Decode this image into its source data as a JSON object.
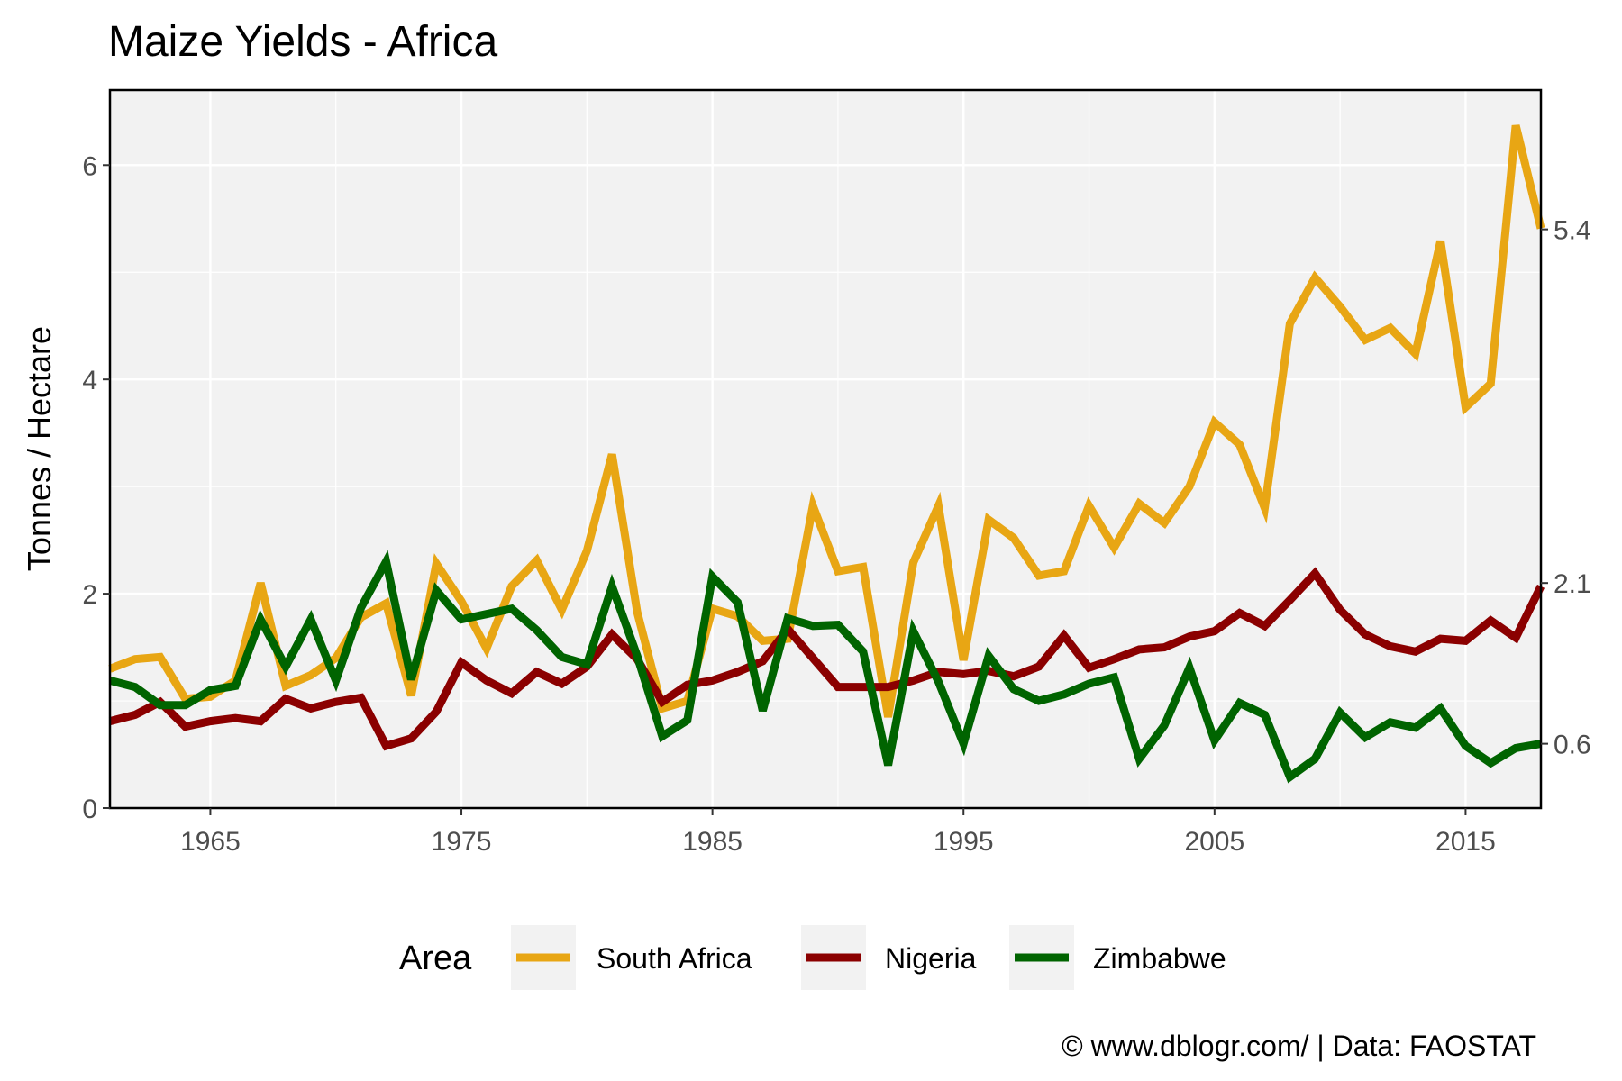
{
  "chart_data": {
    "type": "line",
    "title": "Maize Yields - Africa",
    "ylabel": "Tonnes / Hectare",
    "xlabel": "",
    "xlim": [
      1961,
      2018
    ],
    "ylim": [
      0,
      6.7
    ],
    "x_ticks": [
      1965,
      1975,
      1985,
      1995,
      2005,
      2015
    ],
    "y_ticks": [
      0,
      2,
      4,
      6
    ],
    "grid": true,
    "secondary_axis_labels": [
      {
        "label": "5.4",
        "value": 5.4
      },
      {
        "label": "2.1",
        "value": 2.1
      },
      {
        "label": "0.6",
        "value": 0.6
      }
    ],
    "legend": {
      "title": "Area",
      "position": "bottom"
    },
    "x": [
      1961,
      1962,
      1963,
      1964,
      1965,
      1966,
      1967,
      1968,
      1969,
      1970,
      1971,
      1972,
      1973,
      1974,
      1975,
      1976,
      1977,
      1978,
      1979,
      1980,
      1981,
      1982,
      1983,
      1984,
      1985,
      1986,
      1987,
      1988,
      1989,
      1990,
      1991,
      1992,
      1993,
      1994,
      1995,
      1996,
      1997,
      1998,
      1999,
      2000,
      2001,
      2002,
      2003,
      2004,
      2005,
      2006,
      2007,
      2008,
      2009,
      2010,
      2011,
      2012,
      2013,
      2014,
      2015,
      2016,
      2017,
      2018
    ],
    "series": [
      {
        "name": "South Africa",
        "color": "#E8A614",
        "values": [
          1.3,
          1.39,
          1.41,
          1.02,
          1.04,
          1.19,
          2.1,
          1.14,
          1.24,
          1.4,
          1.78,
          1.91,
          1.05,
          2.28,
          1.93,
          1.49,
          2.07,
          2.31,
          1.85,
          2.4,
          3.3,
          1.83,
          0.93,
          1.0,
          1.86,
          1.79,
          1.56,
          1.58,
          2.82,
          2.21,
          2.25,
          0.85,
          2.29,
          2.82,
          1.38,
          2.69,
          2.52,
          2.17,
          2.21,
          2.82,
          2.43,
          2.84,
          2.66,
          3.0,
          3.6,
          3.39,
          2.8,
          4.52,
          4.95,
          4.68,
          4.37,
          4.48,
          4.24,
          5.29,
          3.74,
          3.96,
          6.37,
          5.41
        ]
      },
      {
        "name": "Nigeria",
        "color": "#8B0000",
        "values": [
          0.81,
          0.87,
          0.99,
          0.76,
          0.81,
          0.84,
          0.81,
          1.02,
          0.93,
          0.99,
          1.03,
          0.58,
          0.65,
          0.9,
          1.36,
          1.19,
          1.07,
          1.27,
          1.16,
          1.32,
          1.62,
          1.39,
          0.99,
          1.15,
          1.19,
          1.27,
          1.37,
          1.67,
          1.4,
          1.13,
          1.13,
          1.13,
          1.19,
          1.27,
          1.25,
          1.28,
          1.23,
          1.32,
          1.61,
          1.31,
          1.39,
          1.48,
          1.5,
          1.6,
          1.65,
          1.82,
          1.7,
          1.94,
          2.19,
          1.85,
          1.62,
          1.51,
          1.46,
          1.58,
          1.56,
          1.75,
          1.59,
          2.07
        ]
      },
      {
        "name": "Zimbabwe",
        "color": "#006400",
        "values": [
          1.19,
          1.13,
          0.96,
          0.96,
          1.1,
          1.14,
          1.76,
          1.32,
          1.76,
          1.19,
          1.87,
          2.3,
          1.2,
          2.03,
          1.76,
          1.81,
          1.86,
          1.66,
          1.41,
          1.34,
          2.07,
          1.42,
          0.67,
          0.82,
          2.16,
          1.92,
          0.91,
          1.77,
          1.7,
          1.71,
          1.46,
          0.4,
          1.65,
          1.18,
          0.6,
          1.42,
          1.11,
          1.0,
          1.06,
          1.16,
          1.22,
          0.46,
          0.77,
          1.31,
          0.63,
          0.98,
          0.87,
          0.29,
          0.46,
          0.89,
          0.66,
          0.8,
          0.75,
          0.93,
          0.58,
          0.42,
          0.56,
          0.6
        ]
      }
    ]
  },
  "caption": "© www.dblogr.com/  |  Data: FAOSTAT"
}
